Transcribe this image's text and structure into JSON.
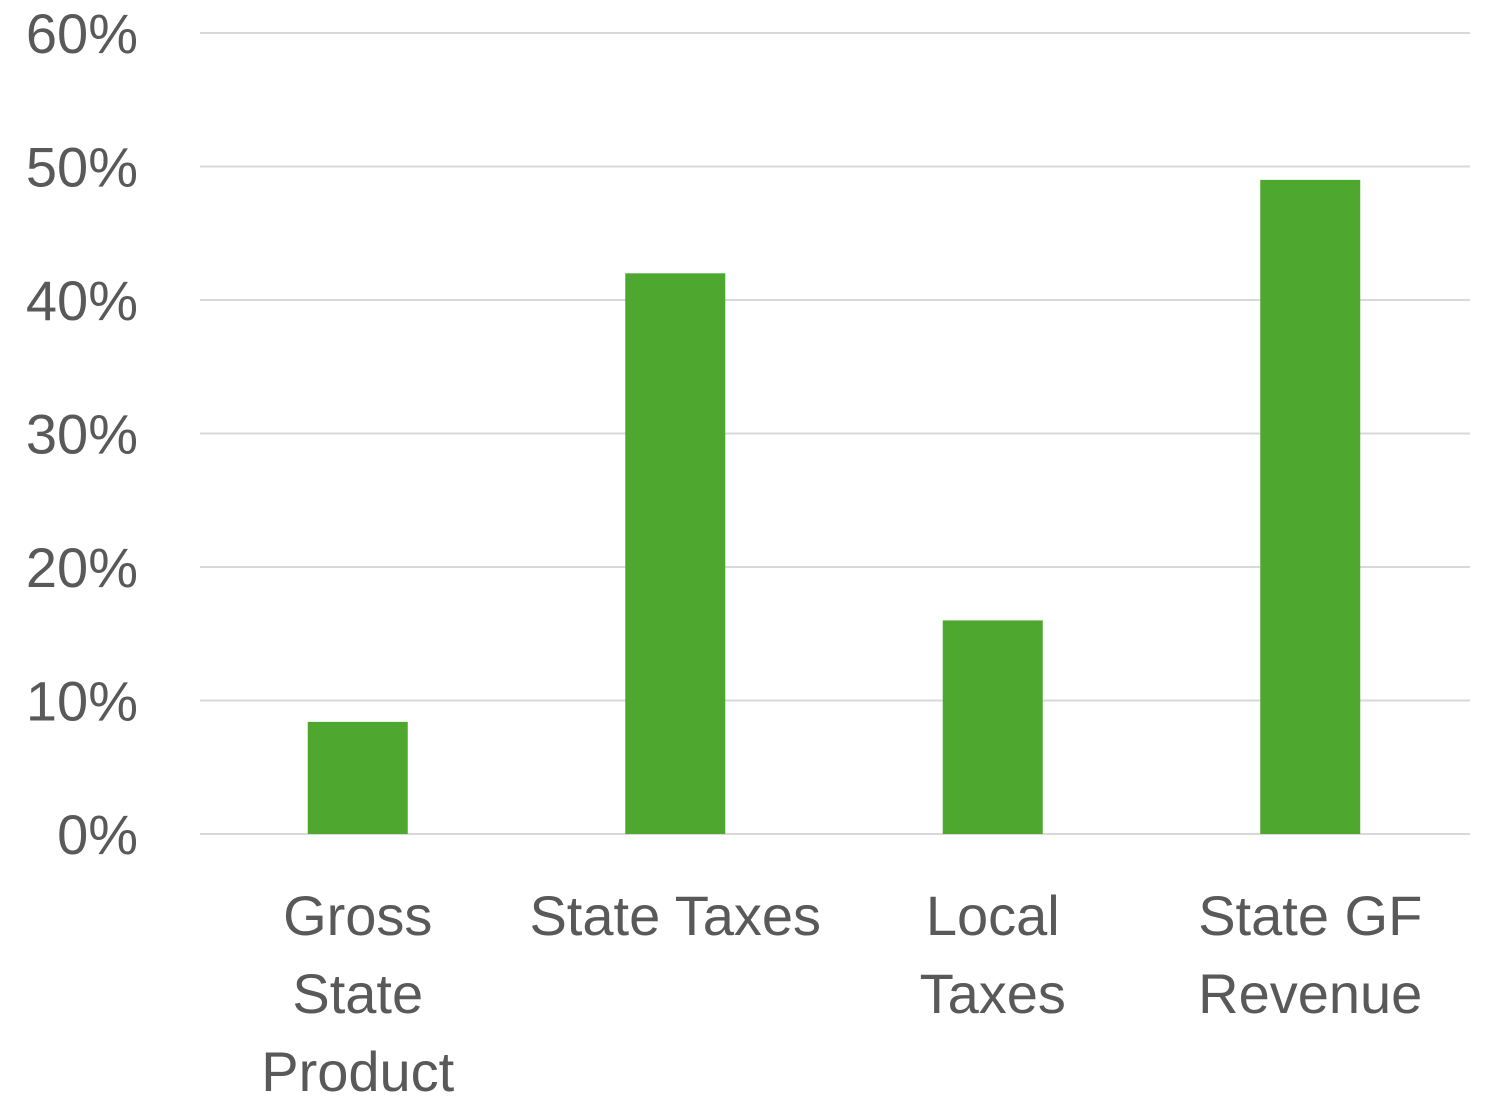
{
  "chart_data": {
    "type": "bar",
    "title": "",
    "xlabel": "",
    "ylabel": "",
    "categories": [
      [
        "Gross",
        "State",
        "Product"
      ],
      [
        "State Taxes"
      ],
      [
        "Local",
        "Taxes"
      ],
      [
        "State GF",
        "Revenue"
      ]
    ],
    "values": [
      8.4,
      42.0,
      16.0,
      49.0
    ],
    "ylim": [
      0,
      60
    ],
    "yticks": [
      0,
      10,
      20,
      30,
      40,
      50,
      60
    ],
    "ytick_labels": [
      "0%",
      "10%",
      "20%",
      "30%",
      "40%",
      "50%",
      "60%"
    ],
    "grid": true,
    "legend": "none",
    "colors": {
      "bar": "#4ea72e",
      "grid": "#d9d9d9",
      "text": "#595959"
    }
  }
}
